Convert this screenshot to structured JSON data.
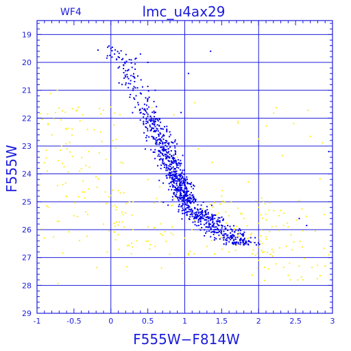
{
  "chart_data": {
    "type": "scatter",
    "title": "lmc_u4ax29",
    "panel_label": "WF4",
    "xlabel": "F555W−F814W",
    "ylabel": "F555W",
    "xlim": [
      -1,
      3
    ],
    "ylim": [
      29,
      18.5
    ],
    "y_inverted": true,
    "x_ticks": [
      "-1",
      "-0.5",
      "0",
      "0.5",
      "1",
      "1.5",
      "2",
      "2.5",
      "3"
    ],
    "x_tick_values": [
      -1,
      -0.5,
      0,
      0.5,
      1,
      1.5,
      2,
      2.5,
      3
    ],
    "y_ticks": [
      "19",
      "20",
      "21",
      "22",
      "23",
      "24",
      "25",
      "26",
      "27",
      "28",
      "29"
    ],
    "y_tick_values": [
      19,
      20,
      21,
      22,
      23,
      24,
      25,
      26,
      27,
      28,
      29
    ],
    "grid": true,
    "colors": {
      "frame": "#1a1adc",
      "grid": "#1a1adc",
      "main": "#0000e6",
      "field": "#ffee22"
    },
    "series": [
      {
        "color": "#0000e6",
        "approx_count": 1000,
        "points": [
          [
            0.0,
            19.5
          ],
          [
            0.05,
            19.7
          ],
          [
            0.1,
            19.8
          ],
          [
            0.15,
            19.9
          ],
          [
            0.25,
            19.9
          ],
          [
            0.1,
            20.2
          ],
          [
            0.2,
            20.3
          ],
          [
            0.3,
            20.5
          ],
          [
            0.4,
            19.7
          ],
          [
            0.5,
            20.0
          ],
          [
            0.2,
            20.8
          ],
          [
            0.3,
            21.0
          ],
          [
            0.4,
            21.1
          ],
          [
            0.5,
            21.3
          ],
          [
            0.6,
            21.0
          ],
          [
            0.45,
            21.7
          ],
          [
            0.55,
            22.0
          ],
          [
            0.6,
            22.3
          ],
          [
            0.65,
            22.6
          ],
          [
            0.7,
            22.9
          ],
          [
            0.65,
            23.2
          ],
          [
            0.7,
            23.5
          ],
          [
            0.75,
            23.8
          ],
          [
            0.8,
            24.0
          ],
          [
            0.85,
            24.3
          ],
          [
            0.9,
            24.6
          ],
          [
            0.95,
            24.9
          ],
          [
            1.0,
            25.1
          ],
          [
            1.1,
            25.4
          ],
          [
            1.2,
            25.6
          ],
          [
            1.3,
            25.9
          ],
          [
            1.45,
            26.1
          ],
          [
            1.6,
            26.3
          ],
          [
            1.75,
            26.4
          ],
          [
            2.55,
            25.6
          ],
          [
            2.65,
            25.85
          ],
          [
            2.95,
            23.2
          ],
          [
            0.95,
            21.8
          ],
          [
            1.05,
            20.4
          ],
          [
            1.35,
            19.6
          ]
        ]
      },
      {
        "color": "#ffee22",
        "approx_count": 280,
        "points": [
          [
            -0.85,
            22.2
          ],
          [
            -0.8,
            22.6
          ],
          [
            -0.75,
            21.8
          ],
          [
            -0.6,
            22.4
          ],
          [
            -0.9,
            23.6
          ],
          [
            -0.85,
            25.2
          ],
          [
            -0.7,
            25.7
          ],
          [
            -0.9,
            26.3
          ],
          [
            -0.6,
            24.8
          ],
          [
            -0.5,
            25.5
          ],
          [
            -0.3,
            23.2
          ],
          [
            -0.2,
            24.1
          ],
          [
            -0.1,
            25.8
          ],
          [
            0.0,
            21.6
          ],
          [
            0.1,
            24.6
          ],
          [
            0.2,
            25.4
          ],
          [
            0.3,
            26.0
          ],
          [
            0.35,
            26.4
          ],
          [
            0.5,
            25.9
          ],
          [
            0.6,
            26.6
          ],
          [
            0.7,
            26.2
          ],
          [
            1.0,
            26.3
          ],
          [
            1.3,
            26.6
          ],
          [
            1.6,
            26.8
          ],
          [
            1.8,
            25.6
          ],
          [
            2.0,
            25.2
          ],
          [
            2.0,
            27.1
          ],
          [
            2.05,
            26.5
          ],
          [
            2.2,
            26.8
          ],
          [
            2.4,
            25.9
          ],
          [
            2.55,
            27.3
          ],
          [
            2.6,
            27.8
          ],
          [
            1.5,
            24.8
          ],
          [
            1.6,
            25.5
          ],
          [
            0.9,
            23.4
          ],
          [
            0.5,
            24.2
          ],
          [
            0.25,
            25.0
          ],
          [
            -0.05,
            26.8
          ],
          [
            1.05,
            26.9
          ],
          [
            2.95,
            26.9
          ]
        ]
      }
    ]
  }
}
